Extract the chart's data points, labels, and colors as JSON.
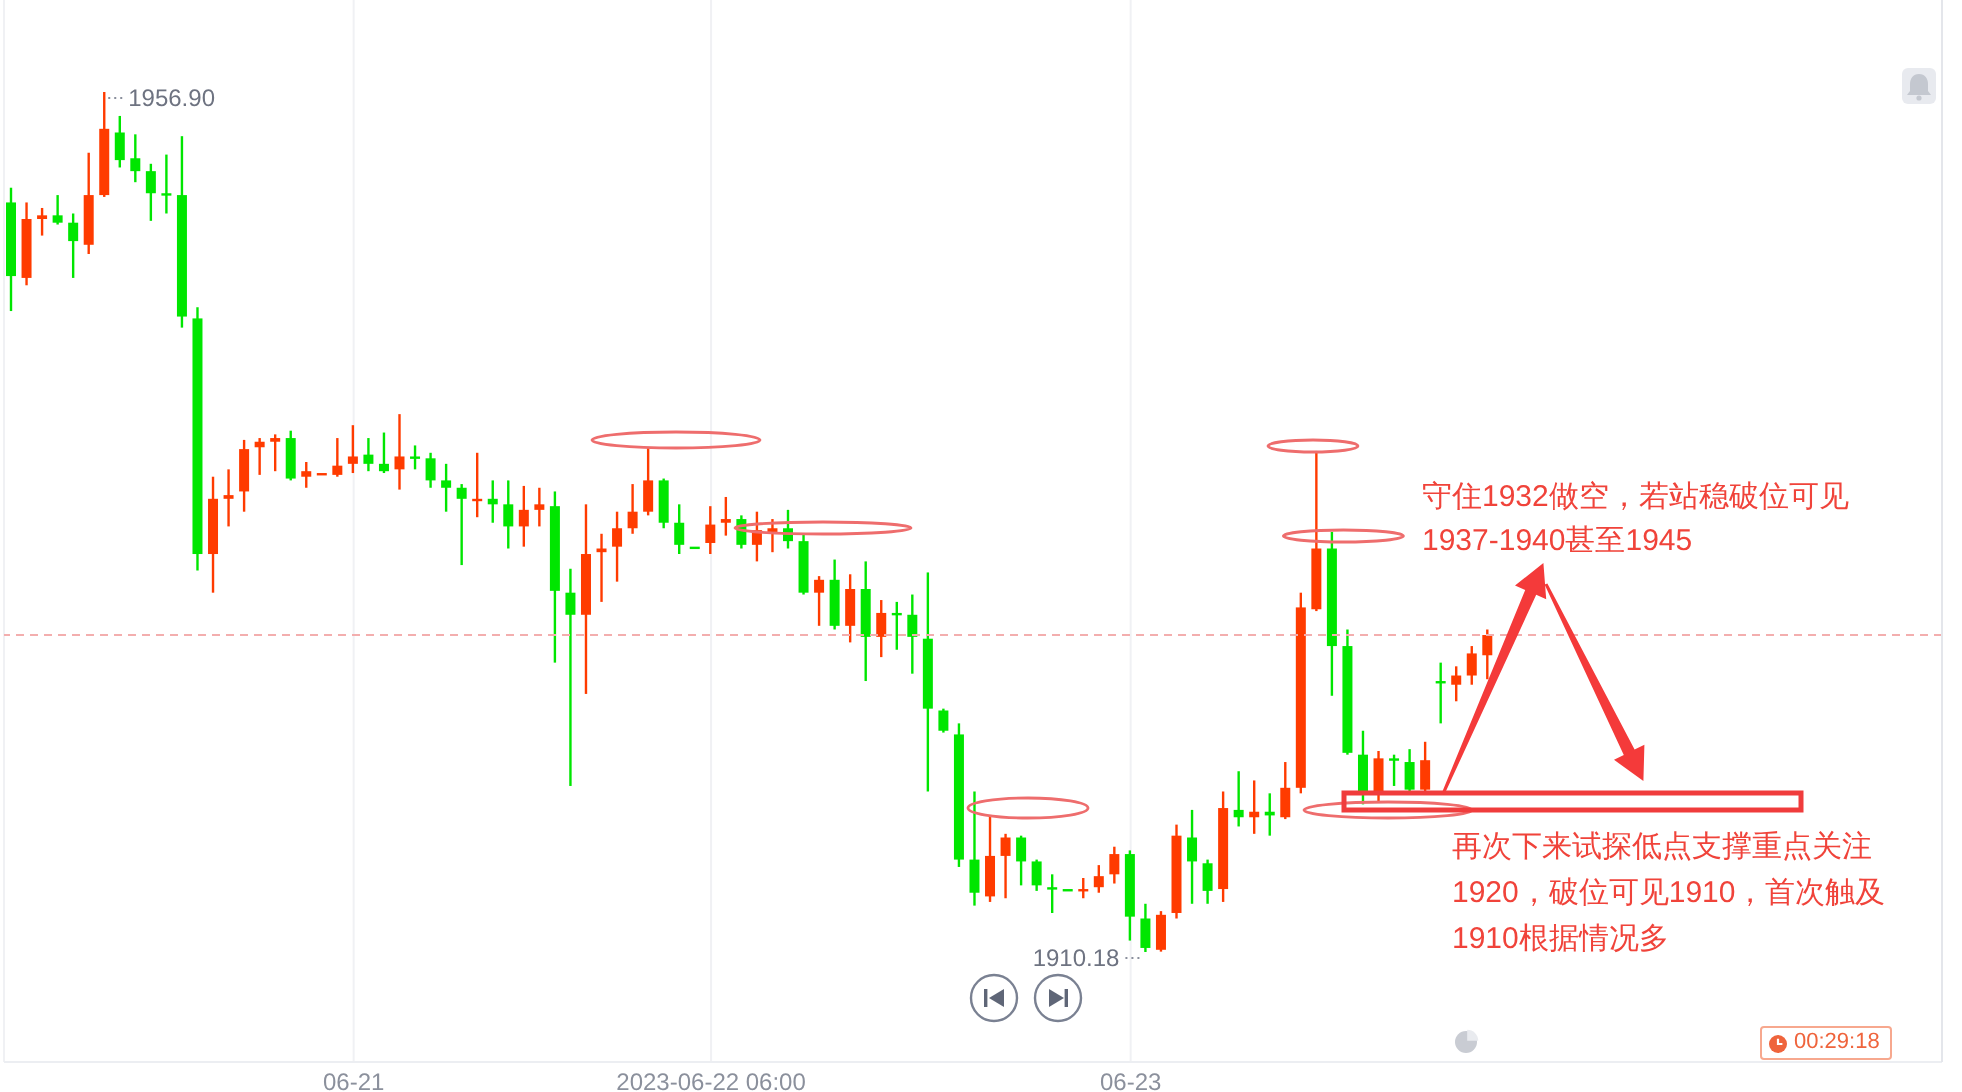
{
  "chart_data": {
    "type": "candlestick",
    "categories": [
      null,
      null,
      null,
      null,
      null,
      null,
      null,
      null,
      null,
      null,
      null,
      null,
      null,
      null,
      null,
      null,
      null,
      null,
      null,
      null,
      null,
      null,
      "06-21",
      null,
      null,
      null,
      null,
      null,
      null,
      null,
      null,
      null,
      null,
      null,
      null,
      null,
      null,
      null,
      null,
      null,
      null,
      null,
      null,
      null,
      null,
      "2023-06-22 06:00",
      null,
      null,
      null,
      null,
      null,
      null,
      null,
      null,
      null,
      null,
      null,
      null,
      null,
      null,
      null,
      null,
      null,
      null,
      null,
      null,
      null,
      null,
      null,
      null,
      null,
      null,
      "06-23",
      null,
      null,
      null,
      null,
      null,
      null,
      null,
      null,
      null,
      null,
      null,
      null,
      null,
      null,
      null,
      null,
      null,
      null,
      null,
      null,
      null,
      null,
      null
    ],
    "ohlc": [
      [
        1950.9,
        1951.7,
        1945.0,
        1946.9
      ],
      [
        1946.8,
        1950.9,
        1946.4,
        1950.0
      ],
      [
        1950.0,
        1950.6,
        1949.1,
        1950.2
      ],
      [
        1950.2,
        1951.3,
        1949.7,
        1949.8
      ],
      [
        1949.8,
        1950.3,
        1946.8,
        1948.8
      ],
      [
        1948.6,
        1953.6,
        1948.1,
        1951.3
      ],
      [
        1951.3,
        1956.9,
        1951.2,
        1954.9
      ],
      [
        1954.7,
        1955.6,
        1952.8,
        1953.2
      ],
      [
        1953.3,
        1954.6,
        1952.0,
        1952.6
      ],
      [
        1952.6,
        1953.0,
        1949.9,
        1951.4
      ],
      [
        1951.4,
        1953.5,
        1950.3,
        1951.3
      ],
      [
        1951.3,
        1954.5,
        1944.1,
        1944.7
      ],
      [
        1944.6,
        1945.2,
        1930.9,
        1931.8
      ],
      [
        1931.8,
        1936.0,
        1929.7,
        1934.8
      ],
      [
        1934.8,
        1936.4,
        1933.3,
        1935.0
      ],
      [
        1935.2,
        1938.0,
        1934.1,
        1937.5
      ],
      [
        1937.6,
        1938.1,
        1936.1,
        1937.9
      ],
      [
        1937.9,
        1938.3,
        1936.3,
        1938.1
      ],
      [
        1938.1,
        1938.5,
        1935.8,
        1935.9
      ],
      [
        1936.0,
        1936.8,
        1935.4,
        1936.3
      ],
      [
        1936.2,
        1936.2,
        1936.2,
        1936.2
      ],
      [
        1936.1,
        1938.1,
        1936.0,
        1936.6
      ],
      [
        1936.7,
        1938.8,
        1936.2,
        1937.1
      ],
      [
        1937.2,
        1938.1,
        1936.3,
        1936.7
      ],
      [
        1936.7,
        1938.4,
        1936.2,
        1936.3
      ],
      [
        1936.4,
        1939.4,
        1935.3,
        1937.1
      ],
      [
        1937.1,
        1937.7,
        1936.4,
        1937.0
      ],
      [
        1937.0,
        1937.3,
        1935.4,
        1935.8
      ],
      [
        1935.8,
        1936.7,
        1934.1,
        1935.4
      ],
      [
        1935.4,
        1935.6,
        1931.2,
        1934.8
      ],
      [
        1934.7,
        1937.3,
        1933.8,
        1934.8
      ],
      [
        1934.8,
        1935.8,
        1933.5,
        1934.5
      ],
      [
        1934.5,
        1935.8,
        1932.1,
        1933.3
      ],
      [
        1933.3,
        1935.5,
        1932.2,
        1934.2
      ],
      [
        1934.2,
        1935.4,
        1933.3,
        1934.5
      ],
      [
        1934.4,
        1935.2,
        1925.9,
        1929.8
      ],
      [
        1929.7,
        1931.0,
        1919.2,
        1928.5
      ],
      [
        1928.5,
        1934.5,
        1924.2,
        1931.8
      ],
      [
        1931.9,
        1932.9,
        1929.2,
        1932.1
      ],
      [
        1932.2,
        1934.1,
        1930.3,
        1933.2
      ],
      [
        1933.2,
        1935.6,
        1932.9,
        1934.1
      ],
      [
        1934.1,
        1937.6,
        1933.9,
        1935.8
      ],
      [
        1935.8,
        1935.9,
        1933.2,
        1933.5
      ],
      [
        1933.5,
        1934.5,
        1931.8,
        1932.3
      ],
      [
        1932.2,
        1932.2,
        1932.2,
        1932.2
      ],
      [
        1932.4,
        1934.4,
        1931.8,
        1933.4
      ],
      [
        1933.5,
        1934.9,
        1932.8,
        1933.7
      ],
      [
        1933.7,
        1933.9,
        1932.1,
        1932.3
      ],
      [
        1932.3,
        1934.1,
        1931.4,
        1933.1
      ],
      [
        1933.0,
        1933.7,
        1931.9,
        1933.2
      ],
      [
        1933.2,
        1934.2,
        1932.1,
        1932.5
      ],
      [
        1932.5,
        1932.9,
        1929.6,
        1929.7
      ],
      [
        1929.7,
        1930.6,
        1927.9,
        1930.4
      ],
      [
        1930.4,
        1931.5,
        1927.7,
        1927.9
      ],
      [
        1927.9,
        1930.7,
        1927.0,
        1929.9
      ],
      [
        1929.9,
        1931.4,
        1924.9,
        1927.3
      ],
      [
        1927.3,
        1929.3,
        1926.2,
        1928.6
      ],
      [
        1928.6,
        1929.2,
        1926.6,
        1928.5
      ],
      [
        1928.5,
        1929.6,
        1925.3,
        1927.3
      ],
      [
        1927.2,
        1930.8,
        1918.9,
        1923.4
      ],
      [
        1923.3,
        1923.4,
        1922.1,
        1922.2
      ],
      [
        1922.0,
        1922.6,
        1914.8,
        1915.2
      ],
      [
        1915.2,
        1918.9,
        1912.7,
        1913.4
      ],
      [
        1913.2,
        1917.6,
        1912.9,
        1915.4
      ],
      [
        1915.4,
        1916.6,
        1913.1,
        1916.4
      ],
      [
        1916.4,
        1916.5,
        1913.8,
        1915.1
      ],
      [
        1915.1,
        1915.2,
        1913.5,
        1913.8
      ],
      [
        1913.7,
        1914.4,
        1912.3,
        1913.7
      ],
      [
        1913.6,
        1913.6,
        1913.6,
        1913.6
      ],
      [
        1913.5,
        1914.2,
        1913.1,
        1913.6
      ],
      [
        1913.7,
        1914.9,
        1913.4,
        1914.3
      ],
      [
        1914.4,
        1915.9,
        1913.9,
        1915.5
      ],
      [
        1915.5,
        1915.7,
        1910.8,
        1912.1
      ],
      [
        1912.0,
        1912.8,
        1910.18,
        1910.4
      ],
      [
        1910.3,
        1912.4,
        1910.2,
        1912.2
      ],
      [
        1912.3,
        1917.1,
        1912.0,
        1916.5
      ],
      [
        1916.4,
        1917.9,
        1912.8,
        1915.1
      ],
      [
        1915.0,
        1915.2,
        1912.8,
        1913.5
      ],
      [
        1913.6,
        1918.9,
        1912.9,
        1918.0
      ],
      [
        1917.9,
        1920.0,
        1917.0,
        1917.5
      ],
      [
        1917.5,
        1919.5,
        1916.6,
        1917.8
      ],
      [
        1917.8,
        1918.8,
        1916.5,
        1917.6
      ],
      [
        1917.5,
        1920.5,
        1917.4,
        1919.1
      ],
      [
        1919.1,
        1929.7,
        1918.8,
        1928.9
      ],
      [
        1928.8,
        1937.4,
        1928.7,
        1932.1
      ],
      [
        1932.1,
        1933.0,
        1924.1,
        1926.8
      ],
      [
        1926.8,
        1927.7,
        1920.9,
        1921.0
      ],
      [
        1920.9,
        1922.2,
        1918.2,
        1918.8
      ],
      [
        1918.8,
        1921.1,
        1918.3,
        1920.7
      ],
      [
        1920.7,
        1920.9,
        1919.2,
        1920.6
      ],
      [
        1920.5,
        1921.2,
        1918.8,
        1919.0
      ],
      [
        1919.0,
        1921.6,
        1918.8,
        1920.6
      ],
      [
        1924.9,
        1925.9,
        1922.6,
        1924.8
      ],
      [
        1924.7,
        1925.7,
        1923.8,
        1925.2
      ],
      [
        1925.2,
        1926.8,
        1924.7,
        1926.4
      ],
      [
        1926.3,
        1927.7,
        1925.0,
        1927.4
      ]
    ],
    "colors": [
      "#00e600",
      "#ff3b00",
      "#ff3b00",
      "#00e600",
      "#00e600",
      "#ff3b00",
      "#ff3b00",
      "#00e600",
      "#00e600",
      "#00e600",
      "#00e600",
      "#00e600",
      "#00e600",
      "#ff3b00",
      "#ff3b00",
      "#ff3b00",
      "#ff3b00",
      "#ff3b00",
      "#00e600",
      "#ff3b00",
      "#ff3b00",
      "#ff3b00",
      "#ff3b00",
      "#00e600",
      "#00e600",
      "#ff3b00",
      "#00e600",
      "#00e600",
      "#00e600",
      "#00e600",
      "#ff3b00",
      "#00e600",
      "#00e600",
      "#ff3b00",
      "#ff3b00",
      "#00e600",
      "#00e600",
      "#ff3b00",
      "#ff3b00",
      "#ff3b00",
      "#ff3b00",
      "#ff3b00",
      "#00e600",
      "#00e600",
      "#00e600",
      "#ff3b00",
      "#ff3b00",
      "#00e600",
      "#ff3b00",
      "#ff3b00",
      "#00e600",
      "#00e600",
      "#ff3b00",
      "#00e600",
      "#ff3b00",
      "#00e600",
      "#ff3b00",
      "#00e600",
      "#00e600",
      "#00e600",
      "#00e600",
      "#00e600",
      "#00e600",
      "#ff3b00",
      "#ff3b00",
      "#00e600",
      "#00e600",
      "#00e600",
      "#00e600",
      "#ff3b00",
      "#ff3b00",
      "#ff3b00",
      "#00e600",
      "#00e600",
      "#ff3b00",
      "#ff3b00",
      "#00e600",
      "#00e600",
      "#ff3b00",
      "#00e600",
      "#ff3b00",
      "#00e600",
      "#ff3b00",
      "#ff3b00",
      "#ff3b00",
      "#00e600",
      "#00e600",
      "#00e600",
      "#ff3b00",
      "#00e600",
      "#00e600",
      "#ff3b00",
      "#00e600",
      "#ff3b00",
      "#ff3b00",
      "#ff3b00"
    ],
    "value_labels": [
      null,
      null,
      null,
      null,
      null,
      null,
      "1956.90",
      null,
      null,
      null,
      null,
      null,
      null,
      null,
      null,
      null,
      null,
      null,
      null,
      null,
      null,
      null,
      null,
      null,
      null,
      null,
      null,
      null,
      null,
      null,
      null,
      null,
      null,
      null,
      null,
      null,
      null,
      null,
      null,
      null,
      null,
      null,
      null,
      null,
      null,
      null,
      null,
      null,
      null,
      null,
      null,
      null,
      null,
      null,
      null,
      null,
      null,
      null,
      null,
      null,
      null,
      null,
      null,
      null,
      null,
      null,
      null,
      null,
      null,
      null,
      null,
      null,
      null,
      "1910.18",
      null,
      null,
      null,
      null,
      null,
      null,
      null,
      null,
      null,
      null,
      null,
      null,
      null,
      null,
      null,
      null,
      null,
      null,
      null,
      null,
      null,
      null
    ],
    "grid": "x",
    "tick_labels": "x",
    "ref_lines": [
      {
        "axis": "y",
        "value": 1927.4,
        "color": "#f3aeae",
        "line_style": "dashed"
      }
    ],
    "annotations": [
      "守住1932做空，若站稳破位可见1937-1940甚至1945",
      "再次下来试探低点支撑重点关注1920，破位可见1910，首次触及1910根据情况多",
      "00:29:18"
    ]
  }
}
